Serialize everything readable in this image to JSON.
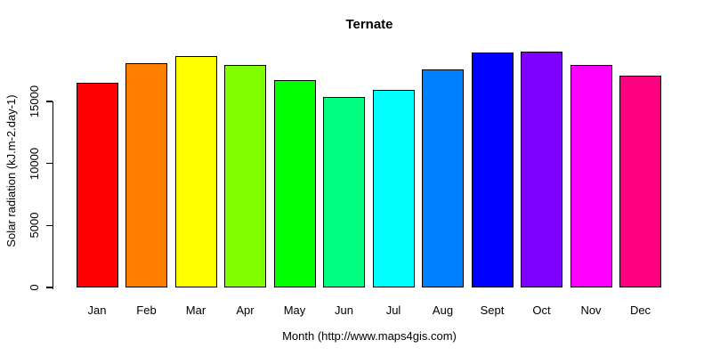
{
  "chart_data": {
    "type": "bar",
    "title": "Ternate",
    "xlabel": "Month (http://www.maps4gis.com)",
    "ylabel": "Solar radiation (kJ.m-2.day-1)",
    "categories": [
      "Jan",
      "Feb",
      "Mar",
      "Apr",
      "May",
      "Jun",
      "Jul",
      "Aug",
      "Sept",
      "Oct",
      "Nov",
      "Dec"
    ],
    "values": [
      16500,
      18100,
      18650,
      17950,
      16750,
      15350,
      15950,
      17600,
      18950,
      19000,
      17950,
      17050
    ],
    "bar_colors": [
      "#FF0000",
      "#FF8000",
      "#FFFF00",
      "#80FF00",
      "#00FF00",
      "#00FF80",
      "#00FFFF",
      "#0080FF",
      "#0000FF",
      "#8000FF",
      "#FF00FF",
      "#FF0080"
    ],
    "yticks": [
      0,
      5000,
      10000,
      15000
    ],
    "ytick_labels": [
      "0",
      "5000",
      "10000",
      "15000"
    ],
    "ylim": [
      0,
      19000
    ],
    "grid": "off",
    "legend": "none",
    "background_color": "#FFFFFF",
    "text_color": "#000000",
    "bar_border_color": "#000000"
  }
}
